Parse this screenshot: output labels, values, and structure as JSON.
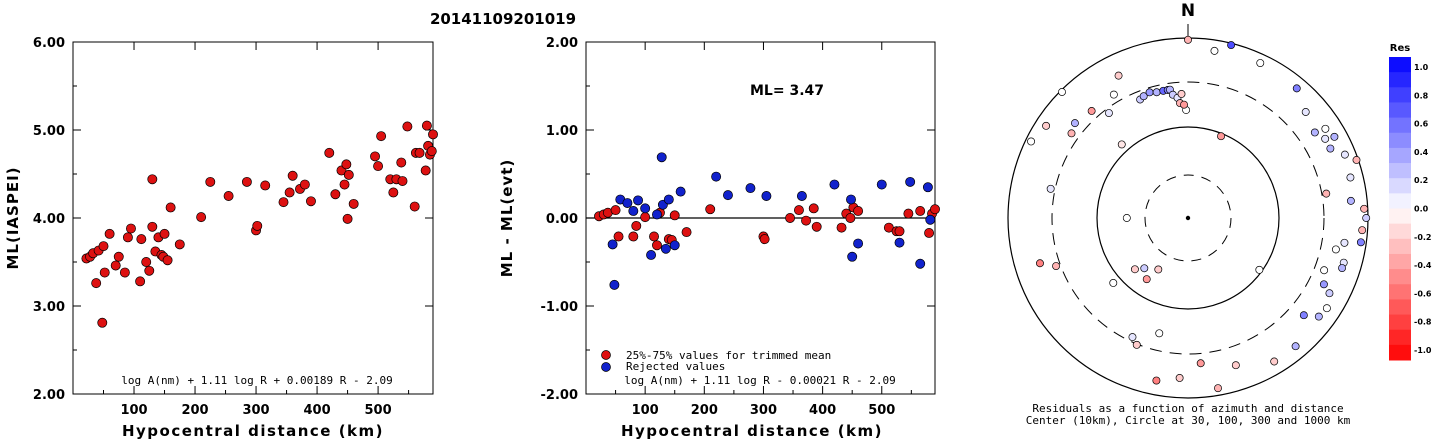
{
  "title": "20141109201019",
  "colors": {
    "accepted": "#dd1111",
    "rejected": "#1122cc",
    "ink": "#000000"
  },
  "chart_data": [
    {
      "type": "scatter",
      "xlabel": "Hypocentral distance (km)",
      "ylabel": "ML(IASPEI)",
      "xlim": [
        0,
        590
      ],
      "ylim": [
        2.0,
        6.0
      ],
      "x_ticks": [
        "100",
        "200",
        "300",
        "400",
        "500"
      ],
      "y_ticks": [
        "2.00",
        "3.00",
        "4.00",
        "5.00",
        "6.00"
      ],
      "formula": "log A(nm) + 1.11 log R + 0.00189 R - 2.09",
      "points": [
        [
          22,
          3.54
        ],
        [
          28,
          3.56
        ],
        [
          33,
          3.6
        ],
        [
          38,
          3.26
        ],
        [
          42,
          3.63
        ],
        [
          48,
          2.81
        ],
        [
          50,
          3.68
        ],
        [
          52,
          3.38
        ],
        [
          60,
          3.82
        ],
        [
          70,
          3.46
        ],
        [
          75,
          3.56
        ],
        [
          85,
          3.38
        ],
        [
          90,
          3.78
        ],
        [
          95,
          3.88
        ],
        [
          110,
          3.28
        ],
        [
          112,
          3.76
        ],
        [
          120,
          3.5
        ],
        [
          125,
          3.4
        ],
        [
          130,
          3.9
        ],
        [
          130,
          4.44
        ],
        [
          135,
          3.62
        ],
        [
          140,
          3.78
        ],
        [
          145,
          3.58
        ],
        [
          148,
          3.56
        ],
        [
          150,
          3.82
        ],
        [
          155,
          3.52
        ],
        [
          160,
          4.12
        ],
        [
          175,
          3.7
        ],
        [
          210,
          4.01
        ],
        [
          225,
          4.41
        ],
        [
          255,
          4.25
        ],
        [
          285,
          4.41
        ],
        [
          300,
          3.86
        ],
        [
          302,
          3.91
        ],
        [
          315,
          4.37
        ],
        [
          345,
          4.18
        ],
        [
          355,
          4.29
        ],
        [
          360,
          4.48
        ],
        [
          372,
          4.33
        ],
        [
          380,
          4.38
        ],
        [
          390,
          4.19
        ],
        [
          420,
          4.74
        ],
        [
          430,
          4.27
        ],
        [
          440,
          4.54
        ],
        [
          445,
          4.38
        ],
        [
          448,
          4.61
        ],
        [
          450,
          3.99
        ],
        [
          452,
          4.49
        ],
        [
          460,
          4.16
        ],
        [
          495,
          4.7
        ],
        [
          500,
          4.59
        ],
        [
          505,
          4.93
        ],
        [
          520,
          4.44
        ],
        [
          525,
          4.29
        ],
        [
          530,
          4.44
        ],
        [
          538,
          4.63
        ],
        [
          540,
          4.42
        ],
        [
          548,
          5.04
        ],
        [
          560,
          4.13
        ],
        [
          562,
          4.74
        ],
        [
          568,
          4.74
        ],
        [
          578,
          4.54
        ],
        [
          580,
          5.05
        ],
        [
          582,
          4.82
        ],
        [
          585,
          4.72
        ],
        [
          588,
          4.76
        ],
        [
          592,
          4.95
        ]
      ]
    },
    {
      "type": "scatter",
      "xlabel": "Hypocentral distance (km)",
      "ylabel": "ML - ML(evt)",
      "xlim": [
        0,
        590
      ],
      "ylim": [
        -2.0,
        2.0
      ],
      "x_ticks": [
        "100",
        "200",
        "300",
        "400",
        "500"
      ],
      "y_ticks": [
        "-2.00",
        "-1.00",
        "0.00",
        "1.00",
        "2.00"
      ],
      "reference_line": 0.0,
      "annotation": "ML= 3.47",
      "legend": [
        "25%-75% values for trimmed mean",
        "Rejected values"
      ],
      "formula": "log A(nm) + 1.11 log R - 0.00021 R - 2.09",
      "accepted": [
        [
          22,
          0.02
        ],
        [
          30,
          0.04
        ],
        [
          37,
          0.06
        ],
        [
          50,
          0.09
        ],
        [
          55,
          -0.21
        ],
        [
          80,
          -0.21
        ],
        [
          85,
          -0.09
        ],
        [
          100,
          0.01
        ],
        [
          115,
          -0.21
        ],
        [
          120,
          -0.31
        ],
        [
          125,
          0.06
        ],
        [
          140,
          -0.24
        ],
        [
          145,
          -0.25
        ],
        [
          150,
          0.03
        ],
        [
          170,
          -0.16
        ],
        [
          210,
          0.1
        ],
        [
          300,
          -0.21
        ],
        [
          302,
          -0.24
        ],
        [
          345,
          0.0
        ],
        [
          360,
          0.09
        ],
        [
          372,
          -0.03
        ],
        [
          385,
          0.11
        ],
        [
          390,
          -0.1
        ],
        [
          432,
          -0.11
        ],
        [
          440,
          0.05
        ],
        [
          447,
          0.0
        ],
        [
          452,
          0.12
        ],
        [
          460,
          0.08
        ],
        [
          512,
          -0.11
        ],
        [
          525,
          -0.15
        ],
        [
          530,
          -0.15
        ],
        [
          545,
          0.05
        ],
        [
          565,
          0.08
        ],
        [
          580,
          -0.17
        ],
        [
          585,
          0.05
        ],
        [
          590,
          0.1
        ]
      ],
      "rejected": [
        [
          45,
          -0.3
        ],
        [
          48,
          -0.76
        ],
        [
          58,
          0.21
        ],
        [
          70,
          0.17
        ],
        [
          80,
          0.08
        ],
        [
          88,
          0.2
        ],
        [
          100,
          0.11
        ],
        [
          110,
          -0.42
        ],
        [
          120,
          0.04
        ],
        [
          128,
          0.69
        ],
        [
          130,
          0.15
        ],
        [
          135,
          -0.35
        ],
        [
          140,
          0.21
        ],
        [
          150,
          -0.31
        ],
        [
          160,
          0.3
        ],
        [
          220,
          0.47
        ],
        [
          240,
          0.26
        ],
        [
          278,
          0.34
        ],
        [
          305,
          0.25
        ],
        [
          365,
          0.25
        ],
        [
          420,
          0.38
        ],
        [
          448,
          0.21
        ],
        [
          450,
          -0.44
        ],
        [
          460,
          -0.29
        ],
        [
          500,
          0.38
        ],
        [
          530,
          -0.28
        ],
        [
          548,
          0.41
        ],
        [
          565,
          -0.52
        ],
        [
          578,
          0.35
        ],
        [
          582,
          -0.02
        ]
      ]
    },
    {
      "type": "scatter",
      "subtype": "polar",
      "north_label": "N",
      "center_km": 10,
      "circle_radii_km": [
        30,
        100,
        300,
        1000
      ],
      "caption": [
        "Residuals as a function of azimuth and distance",
        "Center (10km), Circle at 30, 100, 300 and 1000 km"
      ],
      "colorbar": {
        "label": "Res",
        "range": [
          -1.0,
          1.0
        ],
        "ticks": [
          "1.0",
          "0.8",
          "0.6",
          "0.4",
          "0.2",
          "0.0",
          "-0.2",
          "-0.4",
          "-0.6",
          "-0.8",
          "-1.0"
        ]
      },
      "points_az_r_res": [
        [
          282,
          0.78,
          0.1
        ],
        [
          306,
          0.8,
          -0.3
        ],
        [
          318,
          0.8,
          -0.4
        ],
        [
          323,
          0.73,
          0.1
        ],
        [
          329,
          0.8,
          0.0
        ],
        [
          334,
          0.88,
          -0.2
        ],
        [
          338,
          0.71,
          0.2
        ],
        [
          340,
          0.72,
          0.3
        ],
        [
          343,
          0.73,
          0.4
        ],
        [
          346,
          0.72,
          0.3
        ],
        [
          349,
          0.72,
          0.6
        ],
        [
          351,
          0.72,
          0.5
        ],
        [
          352,
          0.72,
          0.3
        ],
        [
          353,
          0.69,
          0.2
        ],
        [
          355,
          0.67,
          0.1
        ],
        [
          357,
          0.69,
          -0.2
        ],
        [
          359,
          0.6,
          0.0
        ],
        [
          356,
          0.64,
          -0.3
        ],
        [
          358,
          0.63,
          -0.4
        ],
        [
          0,
          0.99,
          -0.3
        ],
        [
          9,
          0.94,
          0.0
        ],
        [
          14,
          0.99,
          0.7
        ],
        [
          22,
          0.49,
          -0.4
        ],
        [
          25,
          0.95,
          0.0
        ],
        [
          40,
          0.94,
          0.5
        ],
        [
          48,
          0.88,
          0.1
        ],
        [
          56,
          0.85,
          0.3
        ],
        [
          57,
          0.91,
          0.0
        ],
        [
          60,
          0.88,
          0.1
        ],
        [
          61,
          0.93,
          0.3
        ],
        [
          64,
          0.88,
          0.3
        ],
        [
          68,
          0.94,
          0.1
        ],
        [
          71,
          0.99,
          -0.3
        ],
        [
          76,
          0.93,
          0.1
        ],
        [
          80,
          0.78,
          -0.3
        ],
        [
          84,
          0.91,
          0.3
        ],
        [
          87,
          0.98,
          -0.3
        ],
        [
          90,
          0.99,
          0.2
        ],
        [
          94,
          0.97,
          -0.3
        ],
        [
          98,
          0.97,
          0.5
        ],
        [
          99,
          0.88,
          0.1
        ],
        [
          102,
          0.84,
          0.0
        ],
        [
          106,
          0.9,
          0.1
        ],
        [
          108,
          0.9,
          0.3
        ],
        [
          111,
          0.81,
          0.0
        ],
        [
          116,
          0.84,
          0.4
        ],
        [
          118,
          0.89,
          0.2
        ],
        [
          123,
          0.92,
          0.0
        ],
        [
          127,
          0.91,
          0.3
        ],
        [
          130,
          0.84,
          0.5
        ],
        [
          126,
          0.49,
          0.0
        ],
        [
          140,
          0.93,
          0.3
        ],
        [
          149,
          0.93,
          -0.2
        ],
        [
          162,
          0.86,
          -0.2
        ],
        [
          170,
          0.96,
          -0.3
        ],
        [
          175,
          0.81,
          -0.4
        ],
        [
          183,
          0.89,
          -0.2
        ],
        [
          191,
          0.92,
          -0.5
        ],
        [
          194,
          0.66,
          0.0
        ],
        [
          202,
          0.76,
          -0.2
        ],
        [
          205,
          0.73,
          0.1
        ],
        [
          210,
          0.33,
          -0.2
        ],
        [
          214,
          0.41,
          -0.4
        ],
        [
          221,
          0.37,
          0.2
        ],
        [
          226,
          0.41,
          -0.2
        ],
        [
          229,
          0.55,
          0.0
        ],
        [
          250,
          0.78,
          -0.3
        ],
        [
          253,
          0.86,
          -0.5
        ],
        [
          270,
          0.34,
          0.0
        ],
        [
          296,
          0.97,
          0.0
        ],
        [
          303,
          0.94,
          -0.2
        ],
        [
          310,
          0.82,
          0.3
        ],
        [
          315,
          0.99,
          0.0
        ],
        [
          318,
          0.55,
          -0.1
        ]
      ]
    }
  ]
}
